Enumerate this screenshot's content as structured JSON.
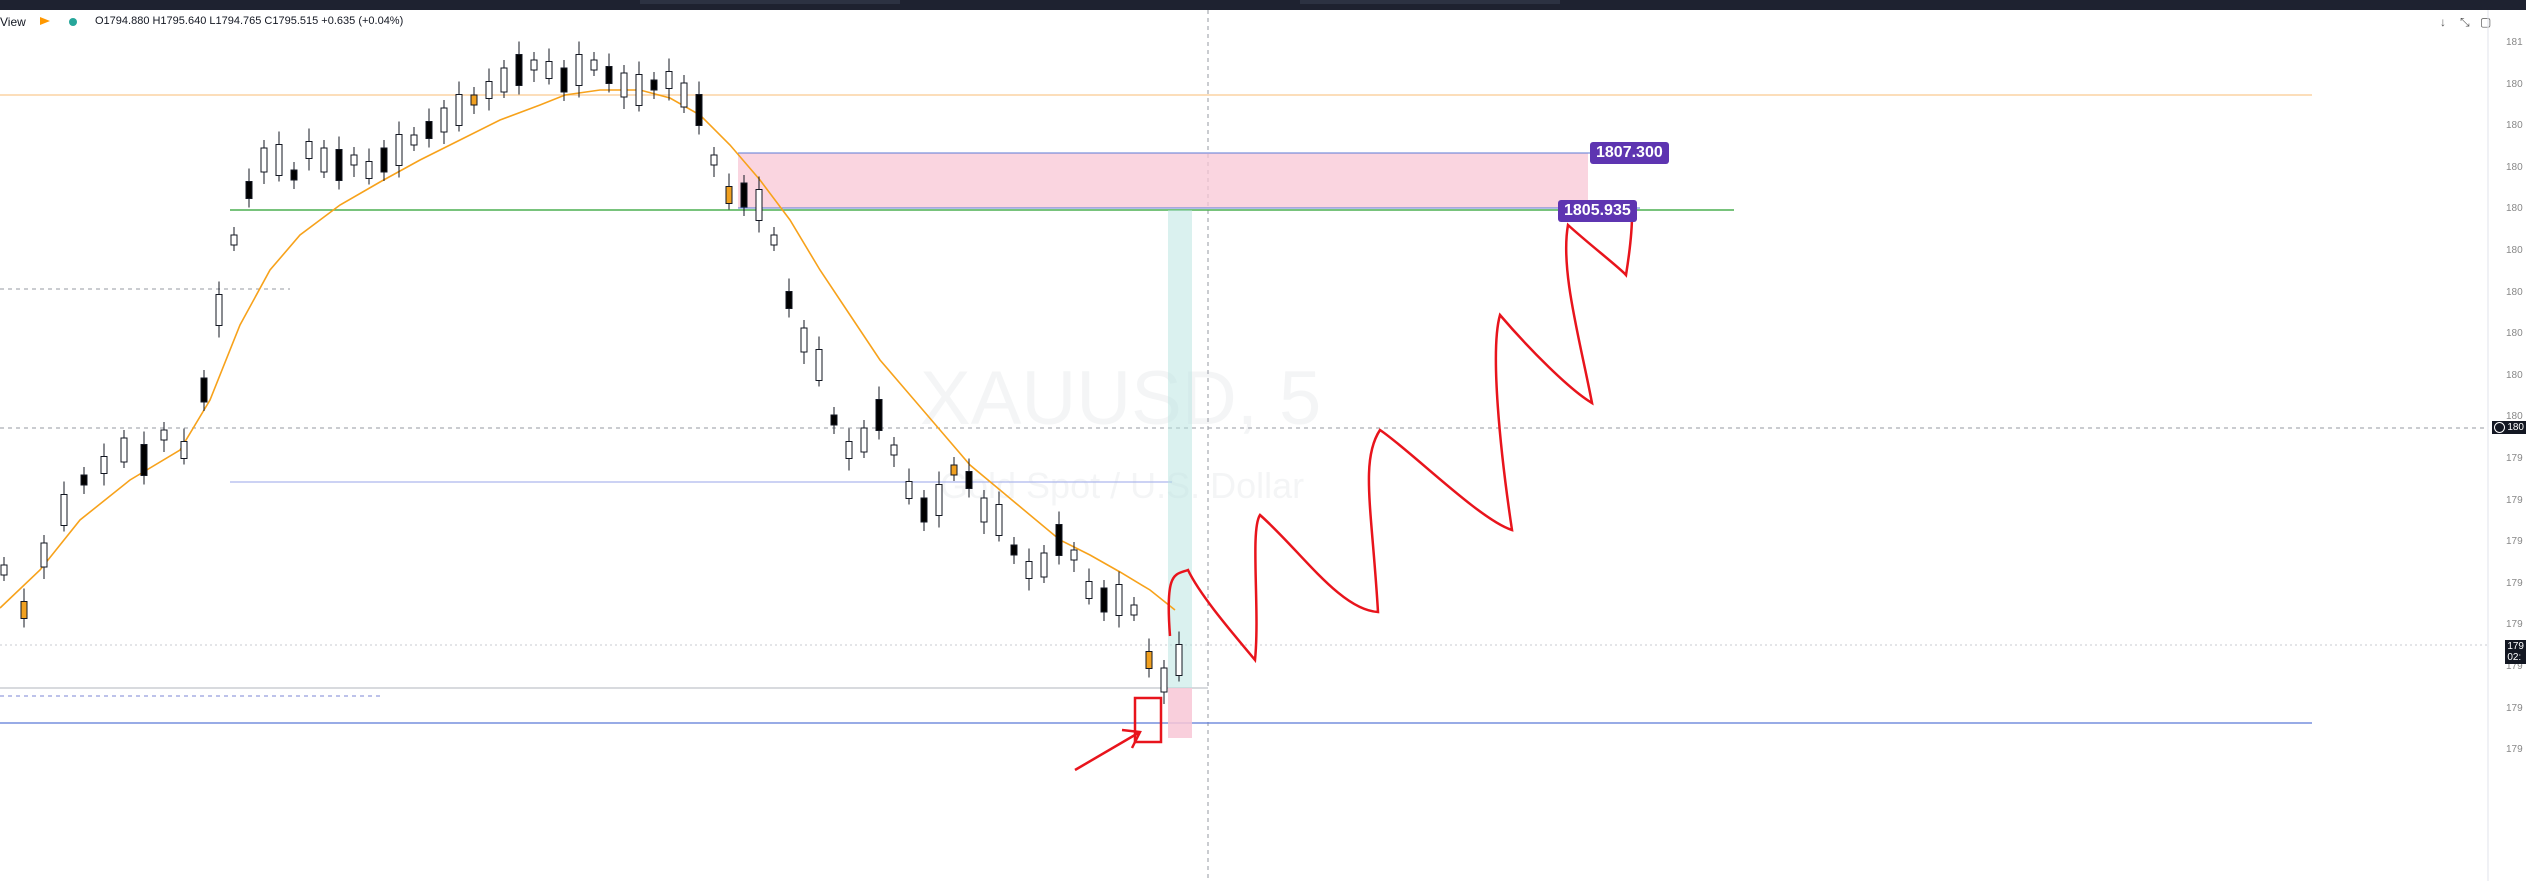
{
  "header": {
    "app_title": "View",
    "ohlc": "O1794.880 H1795.640 L1794.765 C1795.515 +0.635 (+0.04%)"
  },
  "watermark": {
    "symbol": "XAUUSD, 5",
    "description": "Gold Spot / U.S. Dollar"
  },
  "price_tags": {
    "upper": "1807.300",
    "lower": "1805.935"
  },
  "axis": {
    "labels": [
      "181",
      "180",
      "180",
      "180",
      "180",
      "180",
      "180",
      "180",
      "180",
      "180",
      "179",
      "179",
      "179",
      "179",
      "179",
      "179",
      "179",
      "179"
    ],
    "current_price_tag": "179",
    "crosshair_tag": "180",
    "time_tag": "02:"
  },
  "colors": {
    "background": "#ffffff",
    "up_candle": "#ffffff",
    "down_candle": "#000000",
    "doji_orange": "#f0a020",
    "ema": "#f7a21b",
    "zone_pink": "#f8c7d6",
    "zone_teal": "#b5e3df",
    "green_line": "#4caf50",
    "blue_line": "#5b79d6",
    "drawing_red": "#e8141c",
    "tag_purple": "#5e35b1"
  },
  "icons": [
    "download-icon",
    "collapse-icon",
    "maximize-icon",
    "eye-icon"
  ]
}
